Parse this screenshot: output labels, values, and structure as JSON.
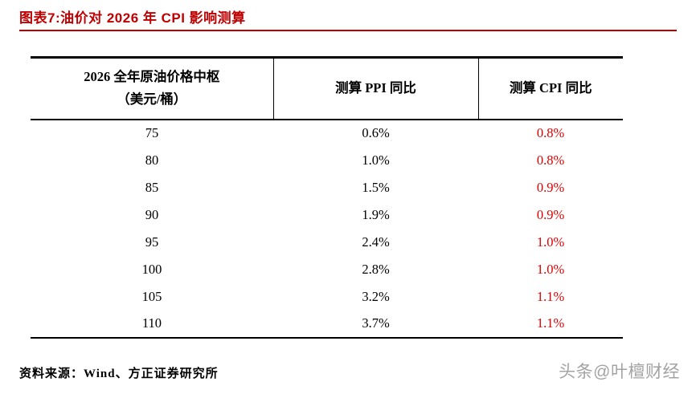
{
  "title": "图表7:油价对 2026 年 CPI 影响测算",
  "table": {
    "headers": {
      "col1_line1": "2026 全年原油价格中枢",
      "col1_line2": "（美元/桶）",
      "col2": "测算 PPI 同比",
      "col3": "测算 CPI 同比"
    },
    "rows": [
      {
        "price": "75",
        "ppi": "0.6%",
        "cpi": "0.8%"
      },
      {
        "price": "80",
        "ppi": "1.0%",
        "cpi": "0.8%"
      },
      {
        "price": "85",
        "ppi": "1.5%",
        "cpi": "0.9%"
      },
      {
        "price": "90",
        "ppi": "1.9%",
        "cpi": "0.9%"
      },
      {
        "price": "95",
        "ppi": "2.4%",
        "cpi": "1.0%"
      },
      {
        "price": "100",
        "ppi": "2.8%",
        "cpi": "1.0%"
      },
      {
        "price": "105",
        "ppi": "3.2%",
        "cpi": "1.1%"
      },
      {
        "price": "110",
        "ppi": "3.7%",
        "cpi": "1.1%"
      }
    ]
  },
  "footer": {
    "source": "资料来源：Wind、方正证券研究所"
  },
  "watermark": "头条@叶檀财经",
  "colors": {
    "title_red": "#c00000",
    "cpi_value_red": "#e00000",
    "watermark_gray": "#a3a3a3",
    "table_border": "#000000"
  }
}
